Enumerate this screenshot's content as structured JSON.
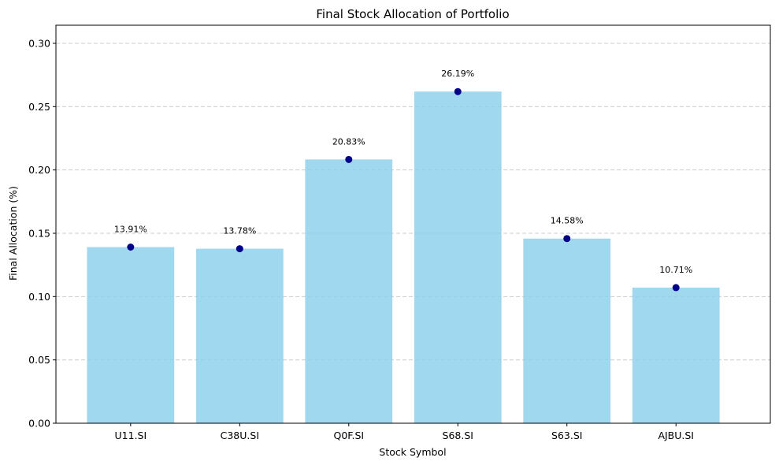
{
  "chart_data": {
    "type": "bar",
    "title": "Final Stock Allocation of Portfolio",
    "xlabel": "Stock Symbol",
    "ylabel": "Final Allocation (%)",
    "categories": [
      "U11.SI",
      "C38U.SI",
      "Q0F.SI",
      "S68.SI",
      "S63.SI",
      "AJBU.SI"
    ],
    "values": [
      0.1391,
      0.1378,
      0.2083,
      0.2619,
      0.1458,
      0.1071
    ],
    "data_labels": [
      "13.91%",
      "13.78%",
      "20.83%",
      "26.19%",
      "14.58%",
      "10.71%"
    ],
    "ylim": [
      0,
      0.3143
    ],
    "yticks": [
      0.0,
      0.05,
      0.1,
      0.15,
      0.2,
      0.25,
      0.3
    ],
    "ytick_labels": [
      "0.00",
      "0.05",
      "0.10",
      "0.15",
      "0.20",
      "0.25",
      "0.30"
    ],
    "grid": {
      "y": true,
      "style": "dashed"
    },
    "markers": true,
    "colors": {
      "bar": "#87CEEB",
      "marker": "#00008B",
      "grid": "#cccccc",
      "axis": "#000000"
    }
  }
}
